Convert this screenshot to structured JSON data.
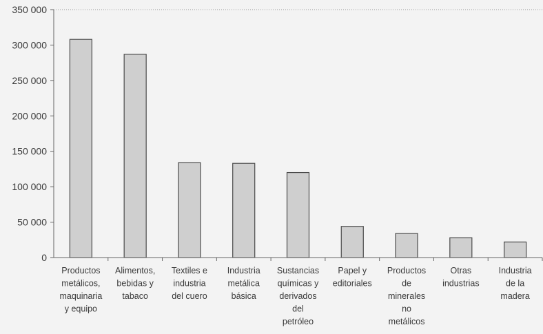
{
  "chart_data": {
    "type": "bar",
    "categories": [
      [
        "Productos",
        "metálicos,",
        "maquinaria",
        "y equipo"
      ],
      [
        "Alimentos,",
        "bebidas y",
        "tabaco"
      ],
      [
        "Textiles e",
        "industria",
        "del cuero"
      ],
      [
        "Industria",
        "metálica",
        "básica"
      ],
      [
        "Sustancias",
        "químicas y",
        "derivados",
        "del",
        "petróleo"
      ],
      [
        "Papel y",
        "editoriales"
      ],
      [
        "Productos",
        "de",
        "minerales",
        "no",
        "metálicos"
      ],
      [
        "Otras",
        "industrias"
      ],
      [
        "Industria",
        "de la",
        "madera"
      ]
    ],
    "values": [
      308000,
      287000,
      134000,
      133000,
      120000,
      44000,
      34000,
      28000,
      22000
    ],
    "ylim": [
      0,
      350000
    ],
    "yticks": [
      0,
      50000,
      100000,
      150000,
      200000,
      250000,
      300000,
      350000
    ],
    "ytick_labels": [
      "0",
      "50 000",
      "100 000",
      "150 000",
      "200 000",
      "250 000",
      "300 000",
      "350 000"
    ],
    "title": "",
    "xlabel": "",
    "ylabel": "",
    "grid": false,
    "colors": {
      "bar_fill": "#cfcfcf",
      "bar_stroke": "#4a4a4a",
      "axis": "#666666",
      "background": "#f3f3f3"
    }
  }
}
